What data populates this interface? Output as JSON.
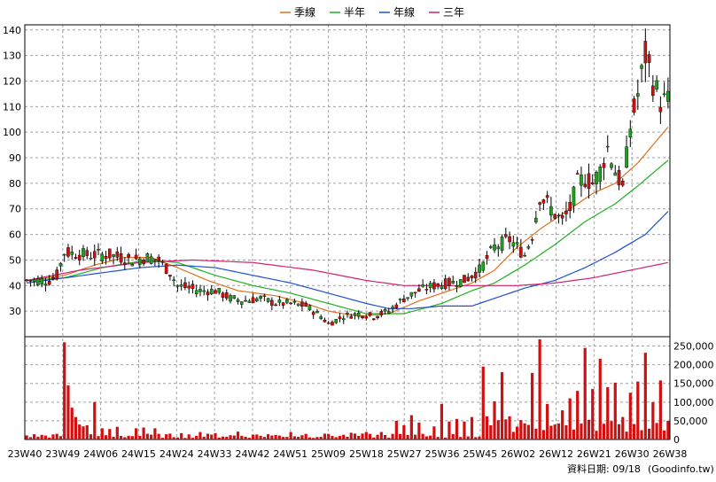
{
  "legend": {
    "items": [
      {
        "label": "季線",
        "color": "#e07020"
      },
      {
        "label": "半年",
        "color": "#20b020"
      },
      {
        "label": "年線",
        "color": "#2050d0"
      },
      {
        "label": "三年",
        "color": "#d02070"
      }
    ]
  },
  "footer": {
    "date_label": "資料日期: 09/18",
    "source": "(Goodinfo.tw)"
  },
  "chart_data": [
    {
      "type": "candlestick",
      "ylim": [
        20,
        142
      ],
      "yticks": [
        30,
        40,
        50,
        60,
        70,
        80,
        90,
        100,
        110,
        120,
        130,
        140
      ],
      "grid": true,
      "legend_position": "top-center",
      "up_color": "#d01010",
      "down_color": "#20a020",
      "series_names": [
        "季線",
        "半年",
        "年線",
        "三年"
      ],
      "price_anchors": [
        [
          0,
          42
        ],
        [
          6,
          42
        ],
        [
          8,
          44
        ],
        [
          10,
          53
        ],
        [
          16,
          52
        ],
        [
          22,
          52
        ],
        [
          28,
          50
        ],
        [
          32,
          51
        ],
        [
          35,
          50
        ],
        [
          38,
          45
        ],
        [
          40,
          40
        ],
        [
          46,
          38
        ],
        [
          50,
          38
        ],
        [
          54,
          35
        ],
        [
          58,
          34
        ],
        [
          62,
          35
        ],
        [
          66,
          33
        ],
        [
          70,
          33
        ],
        [
          74,
          32
        ],
        [
          78,
          28
        ],
        [
          80,
          25
        ],
        [
          84,
          28
        ],
        [
          88,
          29
        ],
        [
          92,
          28
        ],
        [
          96,
          30
        ],
        [
          100,
          35
        ],
        [
          104,
          38
        ],
        [
          108,
          40
        ],
        [
          112,
          41
        ],
        [
          116,
          42
        ],
        [
          120,
          46
        ],
        [
          124,
          55
        ],
        [
          128,
          58
        ],
        [
          132,
          52
        ],
        [
          134,
          60
        ],
        [
          136,
          75
        ],
        [
          138,
          72
        ],
        [
          140,
          68
        ],
        [
          142,
          65
        ],
        [
          144,
          70
        ],
        [
          146,
          80
        ],
        [
          148,
          82
        ],
        [
          150,
          80
        ],
        [
          152,
          85
        ],
        [
          154,
          94
        ],
        [
          156,
          85
        ],
        [
          158,
          78
        ],
        [
          160,
          102
        ],
        [
          162,
          115
        ],
        [
          164,
          130
        ],
        [
          166,
          120
        ],
        [
          168,
          112
        ],
        [
          170,
          112
        ]
      ],
      "ma_quarter": [
        [
          0,
          42
        ],
        [
          10,
          44
        ],
        [
          18,
          48
        ],
        [
          26,
          51
        ],
        [
          33,
          51
        ],
        [
          40,
          47
        ],
        [
          48,
          42
        ],
        [
          56,
          38
        ],
        [
          66,
          36
        ],
        [
          74,
          33
        ],
        [
          80,
          30
        ],
        [
          88,
          28
        ],
        [
          96,
          29
        ],
        [
          104,
          34
        ],
        [
          112,
          38
        ],
        [
          118,
          41
        ],
        [
          124,
          46
        ],
        [
          130,
          55
        ],
        [
          136,
          62
        ],
        [
          144,
          70
        ],
        [
          150,
          76
        ],
        [
          156,
          80
        ],
        [
          162,
          88
        ],
        [
          166,
          95
        ],
        [
          170,
          102
        ]
      ],
      "ma_half": [
        [
          0,
          42
        ],
        [
          10,
          43
        ],
        [
          20,
          47
        ],
        [
          32,
          50
        ],
        [
          40,
          49
        ],
        [
          50,
          44
        ],
        [
          60,
          40
        ],
        [
          70,
          37
        ],
        [
          80,
          33
        ],
        [
          90,
          29
        ],
        [
          100,
          29
        ],
        [
          110,
          33
        ],
        [
          118,
          38
        ],
        [
          124,
          41
        ],
        [
          132,
          48
        ],
        [
          140,
          56
        ],
        [
          148,
          65
        ],
        [
          156,
          72
        ],
        [
          162,
          79
        ],
        [
          170,
          89
        ]
      ],
      "ma_year": [
        [
          0,
          41
        ],
        [
          10,
          43
        ],
        [
          20,
          45
        ],
        [
          30,
          47
        ],
        [
          40,
          48
        ],
        [
          50,
          47
        ],
        [
          60,
          44
        ],
        [
          70,
          41
        ],
        [
          80,
          37
        ],
        [
          90,
          33
        ],
        [
          96,
          31
        ],
        [
          102,
          31
        ],
        [
          110,
          32
        ],
        [
          118,
          32
        ],
        [
          124,
          35
        ],
        [
          132,
          39
        ],
        [
          140,
          42
        ],
        [
          148,
          47
        ],
        [
          156,
          53
        ],
        [
          164,
          60
        ],
        [
          170,
          69
        ]
      ],
      "ma_3y": [
        [
          0,
          42
        ],
        [
          14,
          46
        ],
        [
          30,
          49
        ],
        [
          44,
          50
        ],
        [
          60,
          49
        ],
        [
          76,
          46
        ],
        [
          90,
          42
        ],
        [
          100,
          40
        ],
        [
          110,
          40
        ],
        [
          120,
          40
        ],
        [
          130,
          40
        ],
        [
          140,
          41
        ],
        [
          150,
          43
        ],
        [
          160,
          46
        ],
        [
          170,
          49
        ]
      ]
    },
    {
      "type": "bar",
      "name": "volume",
      "ylim": [
        0,
        275000
      ],
      "yticks": [
        0,
        50000,
        100000,
        150000,
        200000,
        250000
      ],
      "ytick_labels": [
        "0",
        "50,000",
        "100,000",
        "150,000",
        "200,000",
        "250,000"
      ],
      "color": "#d01010",
      "xtick_labels": [
        "23W40",
        "23W49",
        "24W06",
        "24W15",
        "24W24",
        "24W33",
        "24W42",
        "24W51",
        "25W09",
        "25W18",
        "25W27",
        "25W36",
        "25W45",
        "26W02",
        "26W12",
        "26W21",
        "26W30",
        "26W38"
      ],
      "spikes": [
        [
          10,
          260000
        ],
        [
          11,
          145000
        ],
        [
          12,
          85000
        ],
        [
          13,
          60000
        ],
        [
          14,
          40000
        ],
        [
          15,
          35000
        ],
        [
          16,
          38000
        ],
        [
          18,
          100000
        ],
        [
          20,
          30000
        ],
        [
          22,
          28000
        ],
        [
          24,
          34000
        ],
        [
          29,
          30000
        ],
        [
          31,
          32000
        ],
        [
          34,
          30000
        ],
        [
          41,
          17000
        ],
        [
          46,
          20000
        ],
        [
          50,
          17000
        ],
        [
          56,
          21000
        ],
        [
          60,
          13000
        ],
        [
          64,
          14000
        ],
        [
          70,
          20000
        ],
        [
          74,
          15000
        ],
        [
          80,
          15000
        ],
        [
          86,
          18000
        ],
        [
          90,
          20000
        ],
        [
          94,
          20000
        ],
        [
          97,
          15000
        ],
        [
          98,
          50000
        ],
        [
          100,
          38000
        ],
        [
          102,
          65000
        ],
        [
          104,
          45000
        ],
        [
          108,
          35000
        ],
        [
          110,
          95000
        ],
        [
          112,
          48000
        ],
        [
          114,
          55000
        ],
        [
          116,
          48000
        ],
        [
          118,
          60000
        ],
        [
          121,
          195000
        ],
        [
          122,
          62000
        ],
        [
          124,
          102000
        ],
        [
          126,
          180000
        ],
        [
          128,
          62000
        ],
        [
          131,
          52000
        ],
        [
          132,
          43000
        ],
        [
          134,
          178000
        ],
        [
          136,
          268000
        ],
        [
          138,
          95000
        ],
        [
          140,
          40000
        ],
        [
          142,
          78000
        ],
        [
          144,
          110000
        ],
        [
          146,
          130000
        ],
        [
          148,
          245000
        ],
        [
          150,
          135000
        ],
        [
          152,
          216000
        ],
        [
          154,
          140000
        ],
        [
          156,
          152000
        ],
        [
          158,
          60000
        ],
        [
          160,
          125000
        ],
        [
          162,
          155000
        ],
        [
          164,
          232000
        ],
        [
          166,
          100000
        ],
        [
          168,
          158000
        ],
        [
          170,
          50000
        ]
      ]
    }
  ]
}
